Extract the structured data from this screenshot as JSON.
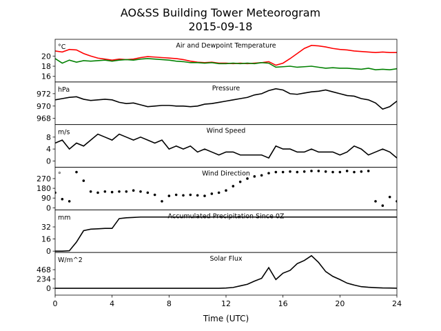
{
  "figure": {
    "title": "AO&SS Building Tower Meteorogram",
    "subtitle": "2015-09-18"
  },
  "chart_data": [
    {
      "type": "line",
      "title": "Air and Dewpoint Temperature",
      "ylabel": "°C",
      "x": [
        0,
        0.5,
        1,
        1.5,
        2,
        2.5,
        3,
        3.5,
        4,
        4.5,
        5,
        5.5,
        6,
        6.5,
        7,
        7.5,
        8,
        8.5,
        9,
        9.5,
        10,
        10.5,
        11,
        11.5,
        12,
        12.5,
        13,
        13.5,
        14,
        14.5,
        15,
        15.5,
        16,
        16.5,
        17,
        17.5,
        18,
        18.5,
        19,
        19.5,
        20,
        20.5,
        21,
        21.5,
        22,
        22.5,
        23,
        23.5,
        24
      ],
      "series": [
        {
          "color": "#ff0000",
          "values": [
            21.0,
            20.8,
            21.3,
            21.2,
            20.5,
            20.0,
            19.6,
            19.4,
            19.2,
            19.4,
            19.3,
            19.4,
            19.7,
            19.9,
            19.8,
            19.7,
            19.6,
            19.5,
            19.3,
            19.0,
            18.8,
            18.7,
            18.8,
            18.6,
            18.6,
            18.5,
            18.6,
            18.5,
            18.6,
            18.7,
            18.9,
            18.2,
            18.6,
            19.5,
            20.5,
            21.5,
            22.1,
            22.0,
            21.8,
            21.5,
            21.3,
            21.2,
            21.0,
            20.9,
            20.8,
            20.7,
            20.8,
            20.7,
            20.7
          ]
        },
        {
          "color": "#008000",
          "values": [
            19.5,
            18.6,
            19.2,
            18.8,
            19.1,
            19.0,
            19.1,
            19.2,
            19.0,
            19.2,
            19.3,
            19.2,
            19.4,
            19.5,
            19.4,
            19.3,
            19.2,
            19.0,
            18.9,
            18.7,
            18.7,
            18.6,
            18.7,
            18.5,
            18.5,
            18.6,
            18.5,
            18.6,
            18.5,
            18.7,
            18.6,
            17.8,
            17.9,
            18.0,
            17.8,
            17.9,
            18.0,
            17.8,
            17.6,
            17.7,
            17.6,
            17.6,
            17.5,
            17.4,
            17.6,
            17.3,
            17.4,
            17.3,
            17.5
          ]
        }
      ],
      "xlim": [
        0,
        24
      ],
      "ylim": [
        14.9,
        23.3
      ],
      "yticks": [
        16,
        18,
        20
      ]
    },
    {
      "type": "line",
      "title": "Pressure",
      "ylabel": "hPa",
      "x": [
        0,
        0.5,
        1,
        1.5,
        2,
        2.5,
        3,
        3.5,
        4,
        4.5,
        5,
        5.5,
        6,
        6.5,
        7,
        7.5,
        8,
        8.5,
        9,
        9.5,
        10,
        10.5,
        11,
        11.5,
        12,
        12.5,
        13,
        13.5,
        14,
        14.5,
        15,
        15.5,
        16,
        16.5,
        17,
        17.5,
        18,
        18.5,
        19,
        19.5,
        20,
        20.5,
        21,
        21.5,
        22,
        22.5,
        23,
        23.5,
        24
      ],
      "series": [
        {
          "color": "#000000",
          "values": [
            971.0,
            971.2,
            971.4,
            971.5,
            971.1,
            970.9,
            971.0,
            971.1,
            971.0,
            970.6,
            970.4,
            970.5,
            970.2,
            969.9,
            970.0,
            970.1,
            970.1,
            970.0,
            970.0,
            969.9,
            970.0,
            970.3,
            970.4,
            970.6,
            970.8,
            971.0,
            971.2,
            971.4,
            971.8,
            972.0,
            972.5,
            972.8,
            972.6,
            972.0,
            971.9,
            972.1,
            972.3,
            972.4,
            972.6,
            972.3,
            972.0,
            971.7,
            971.6,
            971.2,
            971.0,
            970.5,
            969.5,
            969.9,
            970.8
          ]
        }
      ],
      "xlim": [
        0,
        24
      ],
      "ylim": [
        967.0,
        973.9
      ],
      "yticks": [
        968,
        970,
        972
      ]
    },
    {
      "type": "line",
      "title": "Wind Speed",
      "ylabel": "m/s",
      "x": [
        0,
        0.5,
        1,
        1.5,
        2,
        2.5,
        3,
        3.5,
        4,
        4.5,
        5,
        5.5,
        6,
        6.5,
        7,
        7.5,
        8,
        8.5,
        9,
        9.5,
        10,
        10.5,
        11,
        11.5,
        12,
        12.5,
        13,
        13.5,
        14,
        14.5,
        15,
        15.5,
        16,
        16.5,
        17,
        17.5,
        18,
        18.5,
        19,
        19.5,
        20,
        20.5,
        21,
        21.5,
        22,
        22.5,
        23,
        23.5,
        24
      ],
      "series": [
        {
          "color": "#000000",
          "values": [
            6,
            7,
            4,
            6,
            5,
            7,
            9,
            8,
            7,
            9,
            8,
            7,
            8,
            7,
            6,
            7,
            4,
            5,
            4,
            5,
            3,
            4,
            3,
            2,
            3,
            3,
            2,
            2,
            2,
            2,
            1,
            5,
            4,
            4,
            3,
            3,
            4,
            3,
            3,
            3,
            2,
            3,
            5,
            4,
            2,
            3,
            4,
            3,
            1
          ]
        }
      ],
      "xlim": [
        0,
        24
      ],
      "ylim": [
        -2.1,
        12.2
      ],
      "yticks": [
        0,
        4,
        8
      ]
    },
    {
      "type": "scatter",
      "title": "Wind Direction",
      "ylabel": "°",
      "x": [
        0,
        0.5,
        1,
        1.5,
        2,
        2.5,
        3,
        3.5,
        4,
        4.5,
        5,
        5.5,
        6,
        6.5,
        7,
        7.5,
        8,
        8.5,
        9,
        9.5,
        10,
        10.5,
        11,
        11.5,
        12,
        12.5,
        13,
        13.5,
        14,
        14.5,
        15,
        15.5,
        16,
        16.5,
        17,
        17.5,
        18,
        18.5,
        19,
        19.5,
        20,
        20.5,
        21,
        21.5,
        22,
        22.5,
        23,
        23.5,
        24
      ],
      "series": [
        {
          "color": "#000000",
          "values": [
            140,
            80,
            60,
            330,
            250,
            150,
            140,
            150,
            145,
            150,
            150,
            160,
            150,
            140,
            120,
            60,
            110,
            120,
            115,
            120,
            115,
            110,
            130,
            140,
            160,
            200,
            240,
            270,
            290,
            300,
            320,
            330,
            330,
            335,
            330,
            335,
            340,
            340,
            335,
            330,
            330,
            340,
            330,
            335,
            340,
            60,
            20,
            100,
            60
          ]
        }
      ],
      "xlim": [
        0,
        24
      ],
      "ylim": [
        -19,
        375
      ],
      "yticks": [
        0,
        90,
        180,
        270
      ]
    },
    {
      "type": "line",
      "title": "Accumulated Precipitation Since 0Z",
      "ylabel": "mm",
      "x": [
        0,
        0.5,
        1,
        1.5,
        2,
        2.5,
        3,
        3.5,
        4,
        4.5,
        5,
        5.5,
        6,
        6.5,
        7,
        7.5,
        8,
        8.5,
        9,
        9.5,
        10,
        10.5,
        11,
        11.5,
        12,
        12.5,
        13,
        13.5,
        14,
        14.5,
        15,
        15.5,
        16,
        16.5,
        17,
        17.5,
        18,
        18.5,
        19,
        19.5,
        20,
        20.5,
        21,
        21.5,
        22,
        22.5,
        23,
        23.5,
        24
      ],
      "series": [
        {
          "color": "#000000",
          "values": [
            0,
            0,
            0.5,
            12,
            27,
            29,
            29.5,
            30,
            30,
            43,
            44,
            44.5,
            45,
            45,
            45,
            45,
            45,
            45,
            45,
            45,
            45,
            45,
            45,
            45,
            45,
            45,
            45,
            45,
            45,
            45,
            45,
            45,
            45,
            45,
            45,
            45,
            45,
            45,
            45,
            45,
            45,
            45,
            45,
            45,
            45,
            45,
            45,
            45,
            45
          ]
        }
      ],
      "xlim": [
        0,
        24
      ],
      "ylim": [
        -1.8,
        54.5
      ],
      "yticks": [
        0,
        16,
        32
      ]
    },
    {
      "type": "line",
      "title": "Solar Flux",
      "ylabel": "W/m^2",
      "xlabel": "Time (UTC)",
      "x": [
        0,
        0.5,
        1,
        1.5,
        2,
        2.5,
        3,
        3.5,
        4,
        4.5,
        5,
        5.5,
        6,
        6.5,
        7,
        7.5,
        8,
        8.5,
        9,
        9.5,
        10,
        10.5,
        11,
        11.5,
        12,
        12.5,
        13,
        13.5,
        14,
        14.5,
        15,
        15.5,
        16,
        16.5,
        17,
        17.5,
        18,
        18.5,
        19,
        19.5,
        20,
        20.5,
        21,
        21.5,
        22,
        22.5,
        23,
        23.5,
        24
      ],
      "series": [
        {
          "color": "#000000",
          "values": [
            0,
            0,
            0,
            0,
            0,
            0,
            0,
            0,
            0,
            0,
            0,
            0,
            0,
            0,
            0,
            0,
            0,
            0,
            0,
            0,
            0,
            0,
            0,
            0,
            5,
            20,
            60,
            100,
            180,
            250,
            520,
            220,
            380,
            450,
            620,
            700,
            820,
            650,
            420,
            300,
            220,
            130,
            80,
            40,
            25,
            15,
            8,
            5,
            2
          ]
        }
      ],
      "xlim": [
        0,
        24
      ],
      "ylim": [
        -173,
        901
      ],
      "yticks": [
        0,
        234,
        468
      ],
      "xticks": [
        0,
        4,
        8,
        12,
        16,
        20,
        24
      ]
    }
  ]
}
